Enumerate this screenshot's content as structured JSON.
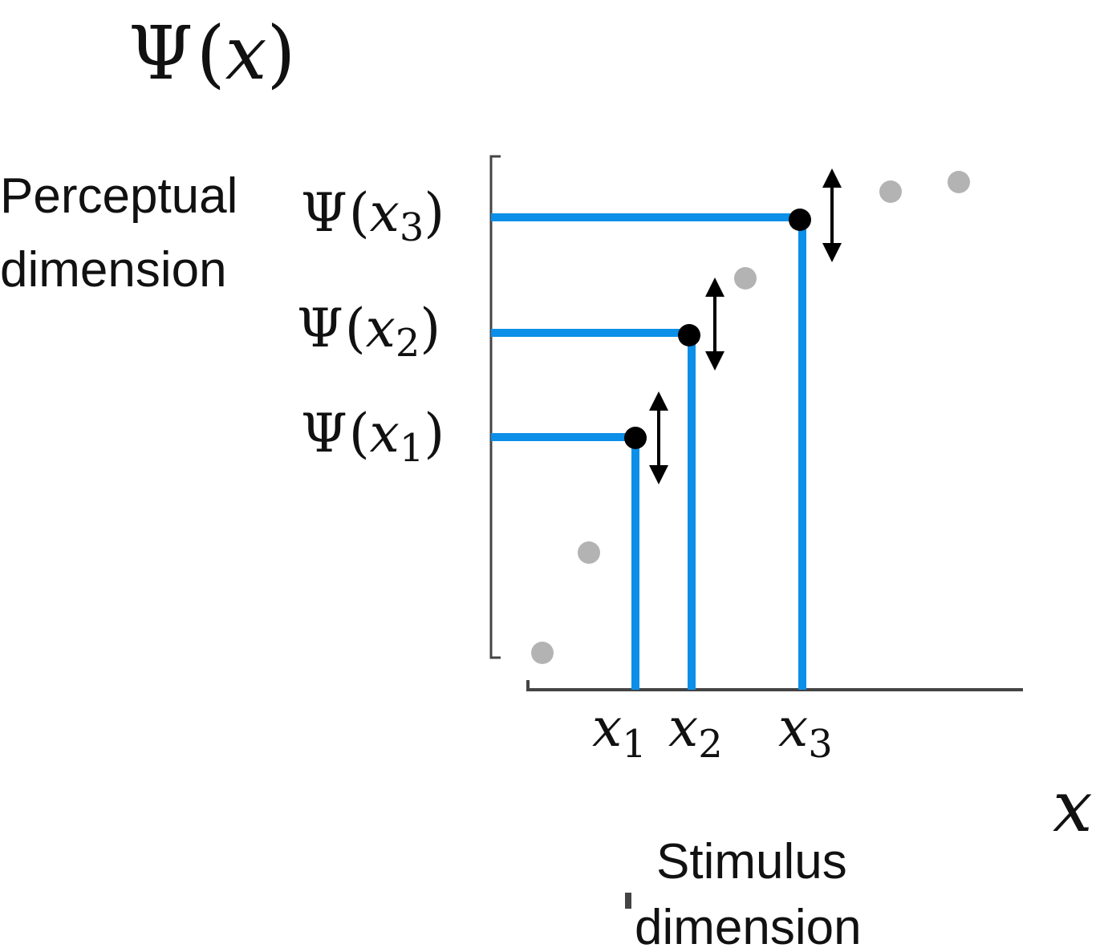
{
  "title": {
    "psi": "Ψ",
    "open": "(",
    "var": "x",
    "close": ")"
  },
  "y_axis_label": {
    "line1": "Perceptual",
    "line2": "dimension"
  },
  "x_axis_label": {
    "line1": "Stimulus",
    "line2": "dimension"
  },
  "x_axis_symbol": "x",
  "psi_labels": [
    {
      "psi": "Ψ",
      "open": "(",
      "var": "x",
      "sub": "1",
      "close": ")"
    },
    {
      "psi": "Ψ",
      "open": "(",
      "var": "x",
      "sub": "2",
      "close": ")"
    },
    {
      "psi": "Ψ",
      "open": "(",
      "var": "x",
      "sub": "3",
      "close": ")"
    }
  ],
  "x_ticks": [
    {
      "var": "x",
      "sub": "1"
    },
    {
      "var": "x",
      "sub": "2"
    },
    {
      "var": "x",
      "sub": "3"
    }
  ],
  "colors": {
    "projection_lines": "#0b8fe8",
    "highlight_points": "#000000",
    "other_points": "#b3b3b3",
    "axes": "#444444"
  }
}
